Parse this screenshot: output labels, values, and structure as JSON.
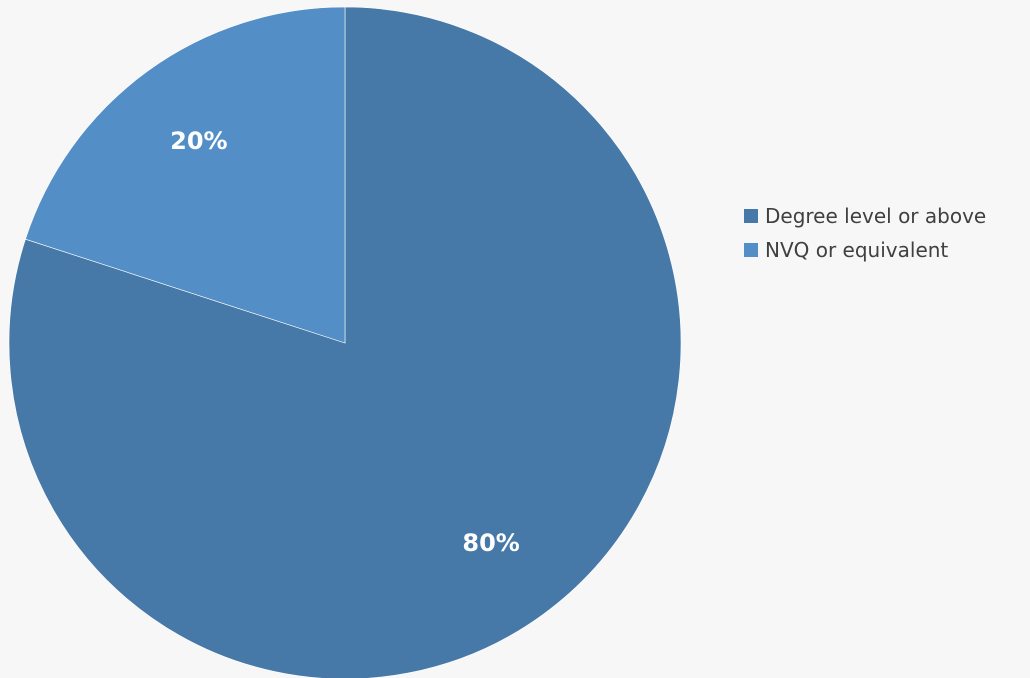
{
  "chart_data": {
    "type": "pie",
    "categories": [
      "Degree level or above",
      "NVQ or equivalent"
    ],
    "values": [
      80,
      20
    ],
    "data_labels": [
      "80%",
      "20%"
    ],
    "colors": [
      "#4779a8",
      "#538fc6"
    ],
    "start_angle_deg": 0,
    "direction": "clockwise",
    "legend_position": "right"
  },
  "legend": {
    "items": [
      {
        "label": "Degree level or above",
        "color": "#4779a8"
      },
      {
        "label": "NVQ or equivalent",
        "color": "#538fc6"
      }
    ]
  },
  "colors": {
    "background": "#f7f7f7",
    "label_text": "#ffffff",
    "legend_text": "#404040"
  }
}
